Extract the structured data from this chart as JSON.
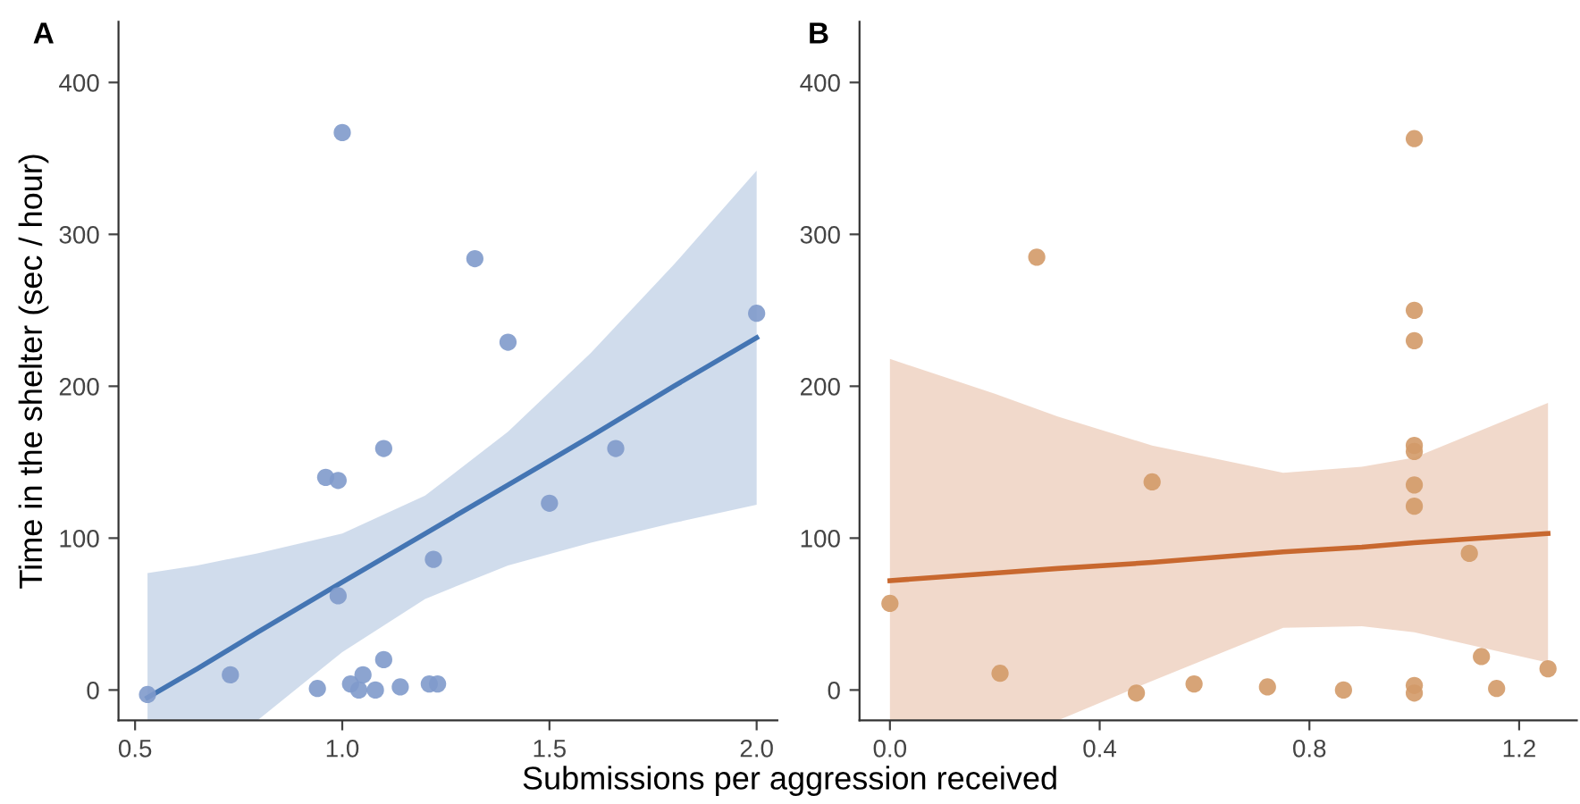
{
  "chart_data": [
    {
      "type": "scatter",
      "title": "A",
      "xlabel": "Submissions per aggression received",
      "ylabel": "Time in the shelter (sec / hour)",
      "xlim": [
        0.46,
        2.05
      ],
      "ylim": [
        -20,
        440
      ],
      "xticks": [
        {
          "value": 0.5,
          "label": "0.5"
        },
        {
          "value": 1.0,
          "label": "1.0"
        },
        {
          "value": 1.5,
          "label": "1.5"
        },
        {
          "value": 2.0,
          "label": "2.0"
        }
      ],
      "yticks": [
        0,
        100,
        200,
        300,
        400
      ],
      "grid": false,
      "series": [
        {
          "marker": "circle",
          "color": "#7f9acb",
          "x": [
            0.53,
            0.73,
            0.94,
            0.96,
            0.99,
            1.0,
            0.99,
            1.02,
            1.04,
            1.05,
            1.08,
            1.1,
            1.1,
            1.14,
            1.21,
            1.23,
            1.22,
            1.32,
            1.4,
            1.5,
            1.66,
            2.0
          ],
          "values": [
            -3,
            10,
            1,
            140,
            138,
            367,
            62,
            4,
            0,
            10,
            0,
            20,
            159,
            2,
            4,
            4,
            86,
            284,
            229,
            123,
            159,
            248
          ]
        },
        {
          "type": "line",
          "color": "#4475b3",
          "x": [
            0.53,
            0.65,
            0.795,
            1.0,
            1.2,
            1.4,
            1.6,
            1.8,
            2.0
          ],
          "values": [
            -5,
            14,
            38,
            71,
            103,
            135,
            167,
            200,
            232
          ],
          "lower": [
            -20,
            -20,
            -20,
            25,
            60,
            82,
            97,
            110,
            122
          ],
          "upper": [
            77,
            82,
            90,
            103,
            128,
            170,
            222,
            280,
            342
          ]
        }
      ]
    },
    {
      "type": "scatter",
      "title": "B",
      "xlim": [
        -0.058,
        1.31
      ],
      "ylim": [
        -20,
        440
      ],
      "xticks": [
        {
          "value": 0.0,
          "label": "0.0"
        },
        {
          "value": 0.4,
          "label": "0.4"
        },
        {
          "value": 0.8,
          "label": "0.8"
        },
        {
          "value": 1.2,
          "label": "1.2"
        }
      ],
      "yticks": [
        0,
        100,
        200,
        300,
        400
      ],
      "grid": false,
      "series": [
        {
          "marker": "circle",
          "color": "#d39a68",
          "x": [
            0.0,
            0.21,
            0.28,
            0.47,
            0.5,
            0.58,
            0.72,
            0.865,
            1.0,
            1.0,
            1.0,
            1.0,
            1.0,
            1.0,
            1.0,
            1.0,
            1.0,
            1.105,
            1.128,
            1.157,
            1.255
          ],
          "values": [
            57,
            11,
            285,
            -2,
            137,
            4,
            2,
            0,
            363,
            250,
            230,
            161,
            157,
            135,
            121,
            3,
            -2,
            90,
            22,
            1,
            14
          ]
        },
        {
          "type": "line",
          "color": "#c8682f",
          "x": [
            0.0,
            0.2,
            0.32,
            0.5,
            0.75,
            0.9,
            1.0,
            1.255
          ],
          "values": [
            72,
            77,
            80,
            84,
            91,
            94,
            97,
            103
          ],
          "lower": [
            -20,
            -20,
            -20,
            6,
            41,
            42,
            38,
            18
          ],
          "upper": [
            218,
            195,
            180,
            161,
            143,
            147,
            153,
            189
          ]
        }
      ]
    }
  ]
}
